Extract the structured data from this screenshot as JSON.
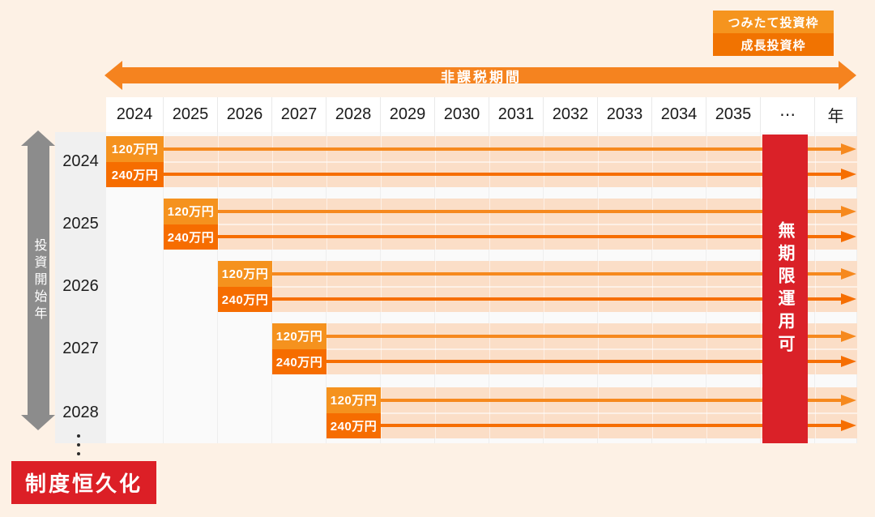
{
  "colors": {
    "page_bg": "#FDF1E5",
    "band": "#FBDEC7",
    "arrow_orange": "#F5831F",
    "orange_light": "#F5941E",
    "orange_dark": "#F17301",
    "limit_box_120": "#F5921E",
    "limit_box_240": "#F66D00",
    "row_arrow_120": "#F6891E",
    "row_arrow_240": "#F66E02",
    "gray_axis": "#8C8C8C",
    "red_bar": "#DA2128",
    "red_badge": "#DC1F26"
  },
  "legend": {
    "items": [
      {
        "label": "つみたて投資枠"
      },
      {
        "label": "成長投資枠"
      }
    ]
  },
  "tax_free_arrow": {
    "label": "非課税期間"
  },
  "timeline": {
    "years": [
      "2024",
      "2025",
      "2026",
      "2027",
      "2028",
      "2029",
      "2030",
      "2031",
      "2032",
      "2033",
      "2034",
      "2035"
    ],
    "ellipsis": "⋯",
    "unit_label": "年"
  },
  "start_year_axis": {
    "label": "投資開始年"
  },
  "rows": [
    {
      "year": "2024"
    },
    {
      "year": "2025"
    },
    {
      "year": "2026"
    },
    {
      "year": "2027"
    },
    {
      "year": "2028"
    }
  ],
  "limits": [
    {
      "label": "120万円"
    },
    {
      "label": "240万円"
    }
  ],
  "unlimited_bar": {
    "label": "無期限運用可"
  },
  "permanent_box": {
    "label": "制度恒久化"
  }
}
